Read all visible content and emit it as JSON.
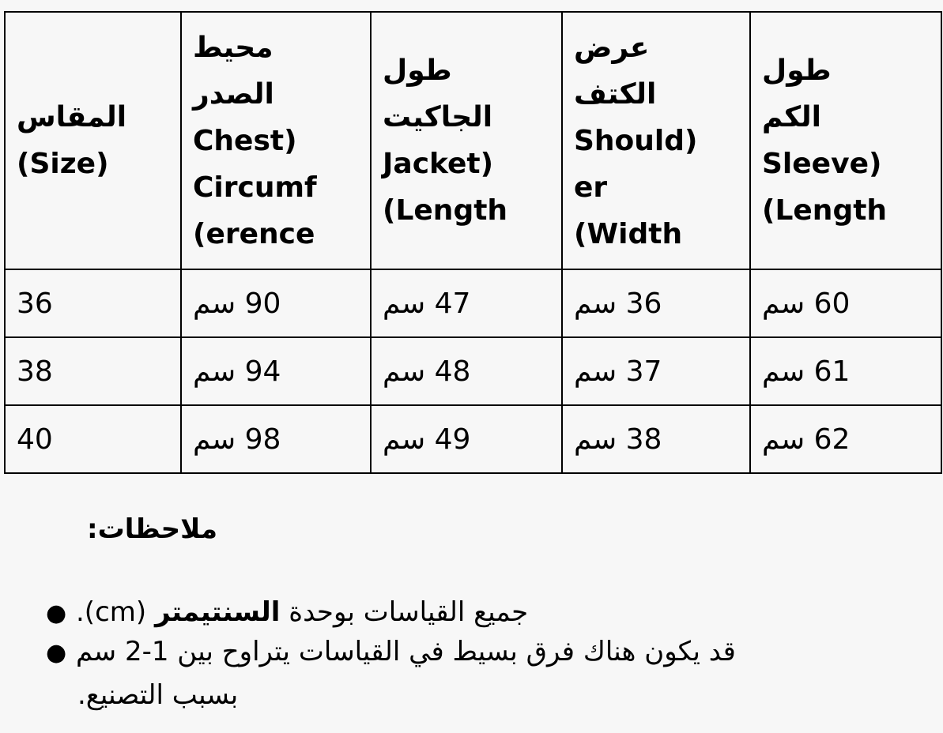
{
  "table": {
    "headers": [
      {
        "lines": [
          "المقاس",
          "(Size)"
        ]
      },
      {
        "lines": [
          "محيط",
          "الصدر",
          "Chest)",
          "Circumf",
          "(erence"
        ]
      },
      {
        "lines": [
          "طول",
          "الجاكيت",
          "Jacket)",
          "(Length"
        ]
      },
      {
        "lines": [
          "عرض",
          "الكتف",
          "Should)",
          "er",
          "(Width"
        ]
      },
      {
        "lines": [
          "طول",
          "الكم",
          "Sleeve)",
          "(Length"
        ]
      }
    ],
    "rows": [
      [
        "36",
        "90 سم",
        "47 سم",
        "36 سم",
        "60 سم"
      ],
      [
        "38",
        "94 سم",
        "48 سم",
        "37 سم",
        "61 سم"
      ],
      [
        "40",
        "98 سم",
        "49 سم",
        "38 سم",
        "62 سم"
      ]
    ]
  },
  "notes": {
    "title": "ملاحظات:",
    "items": [
      {
        "before": "جميع القياسات بوحدة ",
        "bold": "السنتيمتر",
        "after": " (cm)."
      },
      {
        "line1": "قد يكون هناك فرق بسيط في القياسات يتراوح بين 1-2 سم",
        "line2": "بسبب التصنيع."
      }
    ]
  }
}
